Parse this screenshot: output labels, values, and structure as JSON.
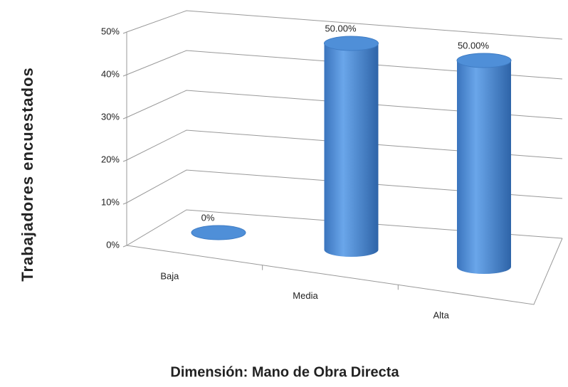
{
  "chart_data": {
    "type": "bar3d",
    "xlabel": "Dimensión: Mano de Obra Directa",
    "ylabel": "Trabajadores encuestados",
    "categories": [
      "Baja",
      "Media",
      "Alta"
    ],
    "values": [
      0,
      50,
      50
    ],
    "value_labels": [
      "0%",
      "50.00%",
      "50.00%"
    ],
    "color": "#4f8fd8",
    "ylim": [
      0,
      50
    ],
    "yticks": [
      {
        "value": 0,
        "label": "0%"
      },
      {
        "value": 10,
        "label": "10%"
      },
      {
        "value": 20,
        "label": "20%"
      },
      {
        "value": 30,
        "label": "30%"
      },
      {
        "value": 40,
        "label": "40%"
      },
      {
        "value": 50,
        "label": "50%"
      }
    ],
    "grid": true
  }
}
